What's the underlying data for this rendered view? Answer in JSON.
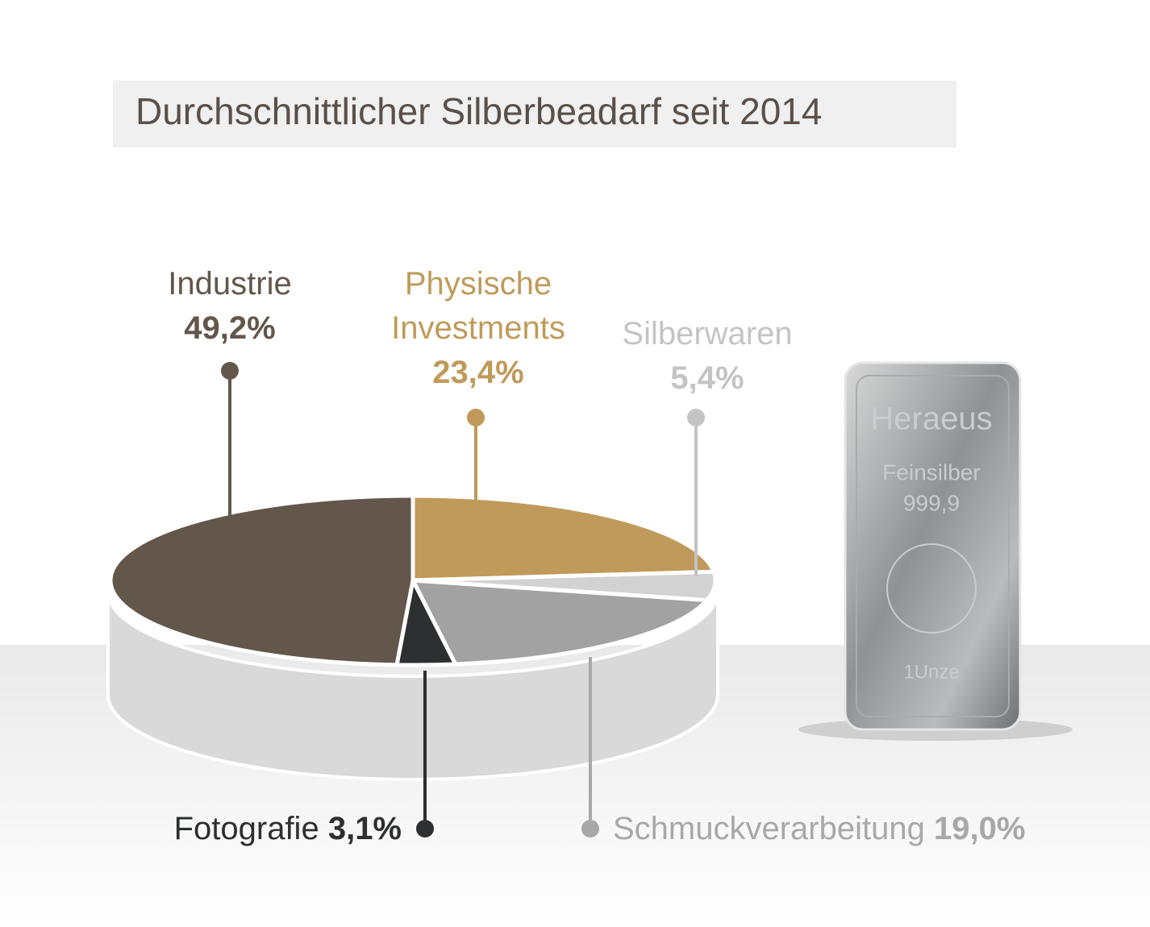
{
  "chart_data": {
    "type": "pie3d",
    "title": "Durchschnittlicher Silberbeadarf seit 2014",
    "categories": [
      "Physische Investments",
      "Silberwaren",
      "Schmuckverarbeitung",
      "Fotografie",
      "Industrie"
    ],
    "values": [
      23.4,
      5.4,
      19.0,
      3.1,
      49.2
    ],
    "value_labels": [
      "23,4%",
      "5,4%",
      "19,0%",
      "3,1%",
      "49,2%"
    ],
    "colors": [
      "#c09a5a",
      "#d2d2d2",
      "#a2a2a2",
      "#2e2f31",
      "#63564b"
    ],
    "label_colors": [
      "#c09a5a",
      "#c4c4c4",
      "#a8a8a8",
      "#2e2f31",
      "#63564b"
    ]
  },
  "silver_bar": {
    "brand": "Heraeus",
    "metal": "Feinsilber",
    "fineness": "999,9",
    "weight": "1Unze"
  }
}
